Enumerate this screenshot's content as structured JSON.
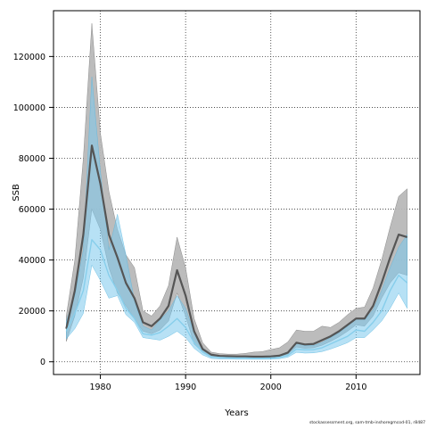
{
  "chart_data": {
    "type": "line",
    "xlabel": "Years",
    "ylabel": "SSB",
    "xlim": [
      1974.5,
      2017.5
    ],
    "ylim": [
      -5000,
      138000
    ],
    "x_ticks": [
      1980,
      1990,
      2000,
      2010
    ],
    "y_ticks": [
      0,
      20000,
      40000,
      60000,
      80000,
      100000,
      120000
    ],
    "grid": true,
    "grid_style": "dotted",
    "legend": "none",
    "x": [
      1976,
      1977,
      1978,
      1979,
      1980,
      1981,
      1982,
      1983,
      1984,
      1985,
      1986,
      1987,
      1988,
      1989,
      1990,
      1991,
      1992,
      1993,
      1994,
      1995,
      1996,
      1997,
      1998,
      1999,
      2000,
      2001,
      2002,
      2003,
      2004,
      2005,
      2006,
      2007,
      2008,
      2009,
      2010,
      2011,
      2012,
      2013,
      2014,
      2015,
      2016
    ],
    "series": [
      {
        "color": "#555555",
        "band_color": "#b8b8b8",
        "line_width": 2.2,
        "values": [
          13000,
          28000,
          50000,
          85000,
          70000,
          50000,
          41000,
          31000,
          25000,
          15500,
          14000,
          17000,
          22000,
          36000,
          26000,
          12000,
          5000,
          2800,
          2300,
          2200,
          2100,
          2100,
          2000,
          2000,
          2100,
          2400,
          3600,
          7500,
          6800,
          7000,
          8500,
          10000,
          12000,
          14500,
          17000,
          17000,
          22000,
          31000,
          41000,
          50000,
          49000
        ],
        "lower": [
          8000,
          18000,
          33000,
          60000,
          52000,
          37000,
          27000,
          22000,
          17000,
          12000,
          11000,
          12500,
          16000,
          27000,
          18000,
          7000,
          3800,
          1900,
          1700,
          1700,
          1600,
          1700,
          1700,
          1700,
          1800,
          2100,
          3000,
          5800,
          5300,
          5500,
          6500,
          8000,
          9800,
          12000,
          14500,
          14000,
          18000,
          25000,
          31000,
          35000,
          34000
        ],
        "upper": [
          18000,
          40000,
          80000,
          133000,
          90000,
          67000,
          52000,
          42000,
          37000,
          20000,
          18000,
          22000,
          30000,
          49000,
          37000,
          17000,
          7500,
          3800,
          3200,
          3000,
          3000,
          3300,
          3800,
          4000,
          4800,
          5500,
          7800,
          12500,
          12000,
          12000,
          14000,
          13500,
          15500,
          18500,
          21000,
          21500,
          29000,
          40000,
          53000,
          65000,
          68000
        ]
      },
      {
        "color": "#87ceeb",
        "band_color": "#7cc8ec",
        "line_width": 1.4,
        "values": [
          12000,
          19000,
          28000,
          48000,
          44000,
          34000,
          28000,
          21000,
          17000,
          11000,
          10500,
          11500,
          14000,
          17000,
          13500,
          7500,
          3800,
          1900,
          1700,
          1600,
          1500,
          1500,
          1400,
          1400,
          1500,
          1700,
          2500,
          5000,
          4700,
          4800,
          5500,
          7000,
          8500,
          10000,
          12500,
          12000,
          15500,
          20000,
          28000,
          34000,
          31000
        ],
        "lower": [
          9000,
          13000,
          19000,
          38000,
          32000,
          25000,
          26000,
          18500,
          15500,
          9500,
          9000,
          8500,
          10000,
          12000,
          9500,
          5300,
          2700,
          1300,
          1100,
          1100,
          1000,
          1000,
          1000,
          1000,
          1000,
          1200,
          1800,
          3700,
          3400,
          3500,
          4000,
          5000,
          6200,
          7500,
          9500,
          9500,
          12500,
          16000,
          21000,
          27000,
          21000
        ],
        "upper": [
          16000,
          26000,
          44000,
          112000,
          75000,
          44000,
          58000,
          42000,
          24000,
          14000,
          12500,
          16500,
          20000,
          26000,
          21000,
          11500,
          5500,
          2800,
          2400,
          2300,
          2200,
          2300,
          2200,
          2200,
          2400,
          2600,
          3800,
          7200,
          6400,
          6400,
          7600,
          9500,
          11500,
          14000,
          17000,
          16500,
          20500,
          28000,
          37000,
          45000,
          50000
        ]
      }
    ]
  },
  "footer": {
    "source_note": "stockassessment.org, sam-tmb-inshoregmcod-01, r8487"
  }
}
